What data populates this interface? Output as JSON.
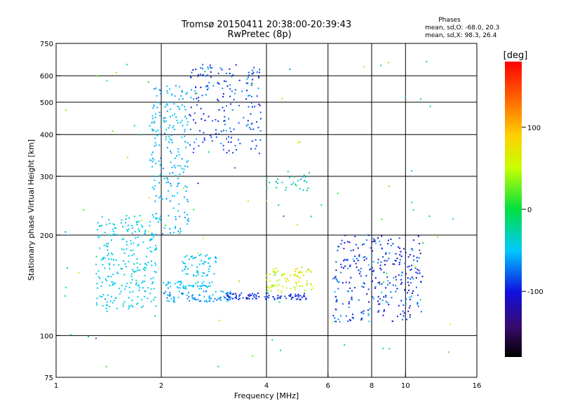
{
  "title": "Tromsø 20150411 20:38:00-20:39:43",
  "subtitle": "RwPretec (8p)",
  "stats": {
    "heading": "Phases",
    "line_o": "mean, sd,O: -68.0, 20.3",
    "line_x": "mean, sd,X: 98.3, 26.4"
  },
  "colorbar": {
    "label": "[deg]",
    "ticks": [
      {
        "value": 100,
        "label": "100"
      },
      {
        "value": 0,
        "label": "0"
      },
      {
        "value": -100,
        "label": "-100"
      }
    ],
    "range": [
      -180,
      180
    ]
  },
  "chart_data": {
    "type": "scatter",
    "xlabel": "Frequency [MHz]",
    "ylabel": "Stationary phase Virtual Height [km]",
    "xscale": "log",
    "yscale": "log",
    "xlim": [
      1,
      16
    ],
    "ylim": [
      75,
      750
    ],
    "xticks": [
      {
        "value": 1,
        "label": "1"
      },
      {
        "value": 2,
        "label": "2"
      },
      {
        "value": 4,
        "label": "4"
      },
      {
        "value": 6,
        "label": "6"
      },
      {
        "value": 8,
        "label": "8"
      },
      {
        "value": 10,
        "label": "10"
      },
      {
        "value": 16,
        "label": "16"
      }
    ],
    "yticks": [
      {
        "value": 75,
        "label": "75"
      },
      {
        "value": 100,
        "label": "100"
      },
      {
        "value": 200,
        "label": "200"
      },
      {
        "value": 300,
        "label": "300"
      },
      {
        "value": 400,
        "label": "400"
      },
      {
        "value": 500,
        "label": "500"
      },
      {
        "value": 600,
        "label": "600"
      },
      {
        "value": 750,
        "label": "750"
      }
    ],
    "grid_x": [
      2,
      4,
      6,
      8,
      10
    ],
    "grid_y": [
      100,
      200,
      300,
      400,
      500,
      600
    ],
    "color_by": "phase [deg]",
    "clusters": [
      {
        "name": "low-frequency cloud",
        "fmin": 1.3,
        "fmax": 1.95,
        "hmin": 120,
        "hmax": 230,
        "phase": -45,
        "spread": 12,
        "count": 260
      },
      {
        "name": "E-region trace",
        "fmin": 2.0,
        "fmax": 3.2,
        "hmin": 126,
        "hmax": 136,
        "phase": -60,
        "spread": 20,
        "count": 80
      },
      {
        "name": "E-region trace upper",
        "fmin": 2.0,
        "fmax": 2.8,
        "hmin": 138,
        "hmax": 146,
        "phase": -50,
        "spread": 15,
        "count": 50
      },
      {
        "name": "F-region rise",
        "fmin": 1.85,
        "fmax": 2.4,
        "hmin": 200,
        "hmax": 560,
        "phase": -55,
        "spread": 15,
        "count": 220
      },
      {
        "name": "F2 cusp",
        "fmin": 2.4,
        "fmax": 3.9,
        "hmin": 350,
        "hmax": 650,
        "phase": -85,
        "spread": 35,
        "count": 190
      },
      {
        "name": "oblique band 160",
        "fmin": 2.3,
        "fmax": 2.9,
        "hmin": 150,
        "hmax": 175,
        "phase": -50,
        "spread": 15,
        "count": 60
      },
      {
        "name": "trace 130-135",
        "fmin": 3.0,
        "fmax": 5.2,
        "hmin": 128,
        "hmax": 134,
        "phase": -95,
        "spread": 25,
        "count": 90
      },
      {
        "name": "trace 135-160",
        "fmin": 4.0,
        "fmax": 5.5,
        "hmin": 136,
        "hmax": 160,
        "phase": 60,
        "spread": 40,
        "count": 80
      },
      {
        "name": "mid patch 280",
        "fmin": 4.0,
        "fmax": 5.3,
        "hmin": 270,
        "hmax": 310,
        "phase": -30,
        "spread": 50,
        "count": 30
      },
      {
        "name": "high-frequency columns",
        "fmin": 6.2,
        "fmax": 11.2,
        "hmin": 110,
        "hmax": 200,
        "phase": -90,
        "spread": 45,
        "count": 300
      },
      {
        "name": "sparse scatter",
        "fmin": 1.05,
        "fmax": 14.0,
        "hmin": 80,
        "hmax": 680,
        "phase": 0,
        "spread": 110,
        "count": 90
      }
    ]
  }
}
